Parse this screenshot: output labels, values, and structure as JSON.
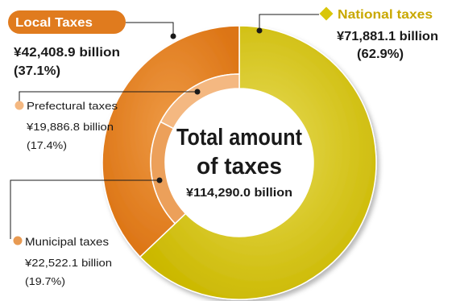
{
  "chart_data": {
    "type": "pie",
    "center_label": {
      "line1": "Total amount",
      "line2": "of taxes",
      "line3": "¥114,290.0 billion"
    },
    "outer_ring": [
      {
        "name": "National taxes",
        "value_text": "¥71,881.1 billion",
        "share_text": "(62.9%)",
        "value": 71881.1,
        "share": 62.9,
        "color": "#d4c20a"
      },
      {
        "name": "Local Taxes",
        "value_text": "¥42,408.9 billion",
        "share_text": "(37.1%)",
        "value": 42408.9,
        "share": 37.1,
        "color": "#e07f1e"
      }
    ],
    "inner_ring": [
      {
        "name": "Prefectural taxes",
        "value_text": "¥19,886.8 billion",
        "share_text": "(17.4%)",
        "value": 19886.8,
        "share": 17.4,
        "color": "#f4b881"
      },
      {
        "name": "Municipal taxes",
        "value_text": "¥22,522.1 billion",
        "share_text": "(19.7%)",
        "value": 22522.1,
        "share": 19.7,
        "color": "#eca05a"
      }
    ],
    "colors": {
      "national_marker": "#d9c60a",
      "local_badge": "#e07b1e",
      "prefectural_marker": "#f4b881",
      "municipal_marker": "#e89a52",
      "text": "#1a1a1a",
      "national_label": "#c9a800"
    }
  }
}
